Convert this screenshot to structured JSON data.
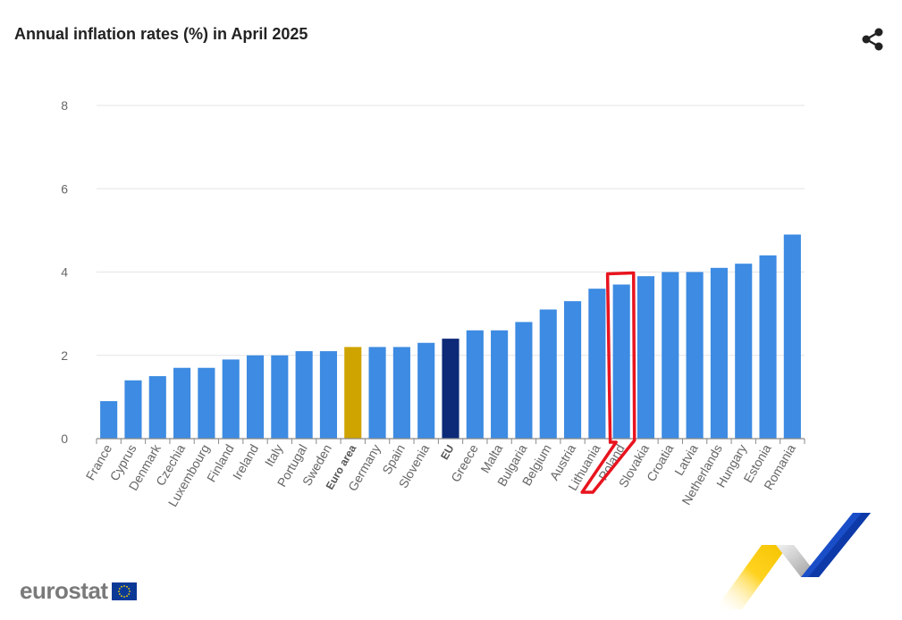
{
  "header": {
    "title": "Annual inflation rates (%) in April 2025"
  },
  "share": {
    "icon": "share-icon"
  },
  "logo": {
    "text": "eurostat",
    "icon": "eu-flag-icon"
  },
  "colors": {
    "default_bar": "#3d8be2",
    "euro_area_bar": "#cfa300",
    "eu_bar": "#0c2a78",
    "highlight_box": "#e8141e",
    "grid": "#e6e6e6"
  },
  "chart_data": {
    "type": "bar",
    "title": "Annual inflation rates (%) in April 2025",
    "xlabel": "",
    "ylabel": "",
    "ylim": [
      0,
      8
    ],
    "yticks": [
      "0",
      "2",
      "4",
      "6",
      "8"
    ],
    "grid": true,
    "categories": [
      "France",
      "Cyprus",
      "Denmark",
      "Czechia",
      "Luxembourg",
      "Finland",
      "Ireland",
      "Italy",
      "Portugal",
      "Sweden",
      "Euro area",
      "Germany",
      "Spain",
      "Slovenia",
      "EU",
      "Greece",
      "Malta",
      "Bulgaria",
      "Belgium",
      "Austria",
      "Lithuania",
      "Poland",
      "Slovakia",
      "Croatia",
      "Latvia",
      "Netherlands",
      "Hungary",
      "Estonia",
      "Romania"
    ],
    "values": [
      0.9,
      1.4,
      1.5,
      1.7,
      1.7,
      1.9,
      2.0,
      2.0,
      2.1,
      2.1,
      2.2,
      2.2,
      2.2,
      2.3,
      2.4,
      2.6,
      2.6,
      2.8,
      3.1,
      3.3,
      3.6,
      3.7,
      3.9,
      4.0,
      4.0,
      4.1,
      4.2,
      4.4,
      4.9
    ],
    "bold_categories": [
      "Euro area",
      "EU"
    ],
    "highlighted_category": "Poland"
  }
}
